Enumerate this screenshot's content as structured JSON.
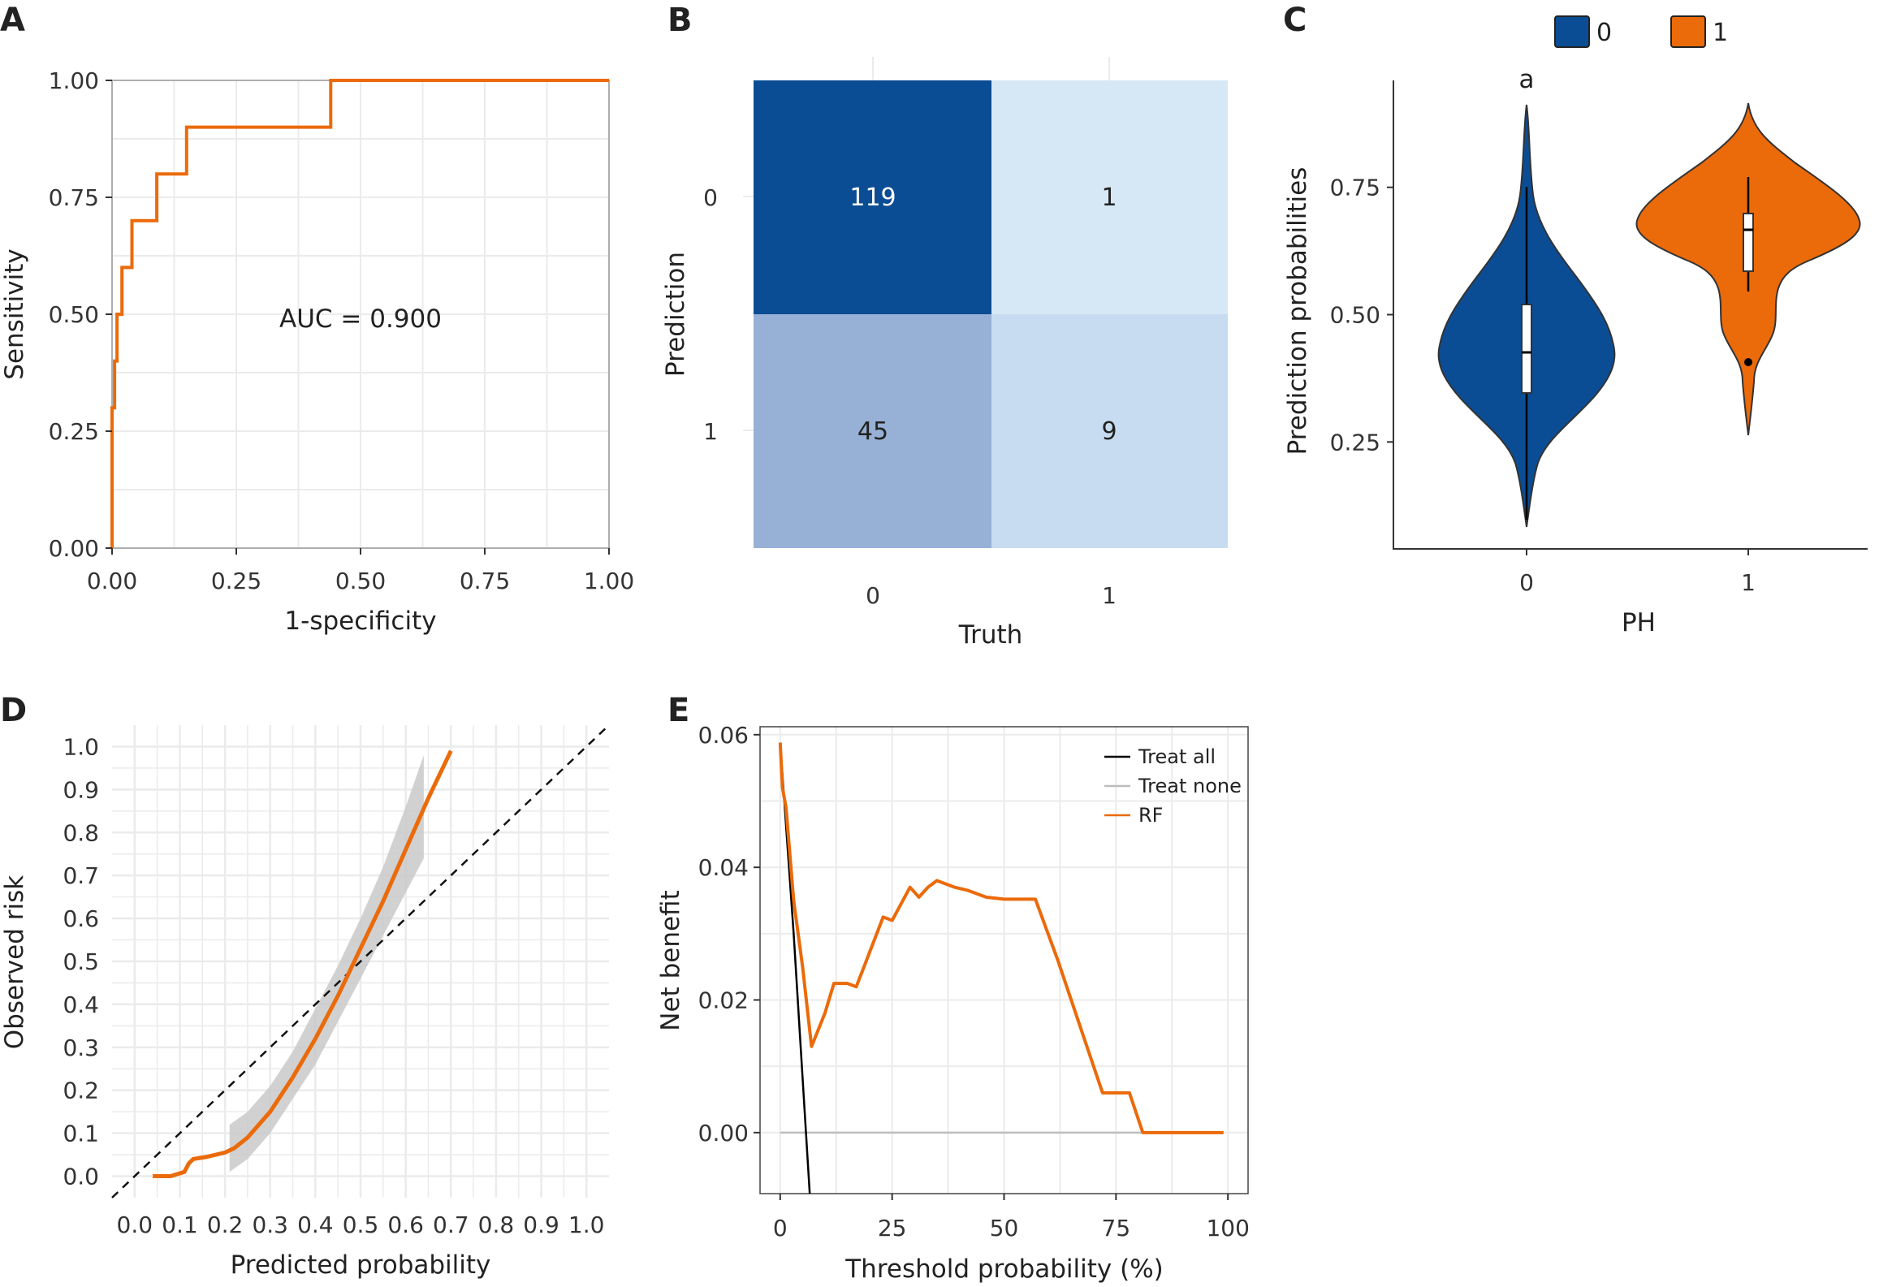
{
  "colors": {
    "orange": "#EB6A0A",
    "blue_dark": "#0B4D94",
    "blue_mid": "#97B0D5",
    "blue_light": "#C7DCF0",
    "blue_lighter": "#D6E8F6",
    "grid": "#EBEBEB",
    "band": "#C9C9C9",
    "treat_none": "#BDBDBD",
    "treat_all": "#000000"
  },
  "chart_data": [
    {
      "panel": "A",
      "type": "line",
      "xlabel": "1-specificity",
      "ylabel": "Sensitivity",
      "annotation": "AUC = 0.900",
      "xlim": [
        0,
        1
      ],
      "ylim": [
        0,
        1
      ],
      "xticks": [
        "0.00",
        "0.25",
        "0.50",
        "0.75",
        "1.00"
      ],
      "yticks": [
        "0.00",
        "0.25",
        "0.50",
        "0.75",
        "1.00"
      ],
      "grid": true,
      "series": [
        {
          "x": [
            0,
            0,
            0.005,
            0.005,
            0.01,
            0.01,
            0.02,
            0.02,
            0.04,
            0.04,
            0.09,
            0.09,
            0.15,
            0.15,
            0.25,
            0.25,
            0.44,
            0.44,
            1.0
          ],
          "y": [
            0,
            0.3,
            0.3,
            0.4,
            0.4,
            0.5,
            0.5,
            0.6,
            0.6,
            0.7,
            0.7,
            0.8,
            0.8,
            0.9,
            0.9,
            0.9,
            0.9,
            1.0,
            1.0
          ]
        }
      ]
    },
    {
      "panel": "B",
      "type": "heatmap",
      "xlabel": "Truth",
      "ylabel": "Prediction",
      "x_categories": [
        "0",
        "1"
      ],
      "y_categories": [
        "0",
        "1"
      ],
      "cells": [
        {
          "truth": "0",
          "prediction": "0",
          "value": 119,
          "text": "119"
        },
        {
          "truth": "1",
          "prediction": "0",
          "value": 1,
          "text": "1"
        },
        {
          "truth": "0",
          "prediction": "1",
          "value": 45,
          "text": "45"
        },
        {
          "truth": "1",
          "prediction": "1",
          "value": 9,
          "text": "9"
        }
      ]
    },
    {
      "panel": "C",
      "type": "violin",
      "xlabel": "PH",
      "ylabel": "Prediction probabilities",
      "categories": [
        "0",
        "1"
      ],
      "legend": [
        "0",
        "1"
      ],
      "legend_position": "top",
      "annotation": "a",
      "ylim": [
        0.04,
        0.96
      ],
      "yticks": [
        "0.25",
        "0.50",
        "0.75"
      ],
      "grid": false,
      "groups": [
        {
          "name": "0",
          "min": 0.06,
          "q1": 0.33,
          "median": 0.41,
          "q3": 0.5,
          "max": 0.91,
          "outliers": []
        },
        {
          "name": "1",
          "min": 0.26,
          "q1": 0.57,
          "median": 0.65,
          "q3": 0.68,
          "max": 0.92,
          "whisker_low": 0.53,
          "whisker_high": 0.76,
          "outliers": [
            0.39
          ]
        }
      ]
    },
    {
      "panel": "D",
      "type": "line",
      "xlabel": "Predicted probability",
      "ylabel": "Observed risk",
      "xlim": [
        -0.05,
        1.05
      ],
      "ylim": [
        -0.05,
        1.05
      ],
      "xticks": [
        "0.0",
        "0.1",
        "0.2",
        "0.3",
        "0.4",
        "0.5",
        "0.6",
        "0.7",
        "0.8",
        "0.9",
        "1.0"
      ],
      "yticks": [
        "0.0",
        "0.1",
        "0.2",
        "0.3",
        "0.4",
        "0.5",
        "0.6",
        "0.7",
        "0.8",
        "0.9",
        "1.0"
      ],
      "grid": true,
      "reference_line": {
        "x": [
          -0.05,
          1.05
        ],
        "y": [
          -0.05,
          1.05
        ],
        "style": "dashed"
      },
      "series": [
        {
          "x": [
            0.04,
            0.08,
            0.11,
            0.12,
            0.13,
            0.16,
            0.2,
            0.22,
            0.25,
            0.3,
            0.35,
            0.4,
            0.45,
            0.5,
            0.55,
            0.6,
            0.65,
            0.7
          ],
          "y": [
            0.0,
            0.0,
            0.01,
            0.03,
            0.04,
            0.045,
            0.055,
            0.065,
            0.09,
            0.15,
            0.23,
            0.32,
            0.42,
            0.53,
            0.64,
            0.76,
            0.88,
            0.99
          ]
        }
      ],
      "confidence_band": {
        "x": [
          0.21,
          0.25,
          0.3,
          0.35,
          0.4,
          0.45,
          0.5,
          0.55,
          0.6,
          0.64
        ],
        "lower": [
          0.01,
          0.04,
          0.1,
          0.18,
          0.26,
          0.36,
          0.46,
          0.56,
          0.66,
          0.74
        ],
        "upper": [
          0.12,
          0.15,
          0.21,
          0.29,
          0.39,
          0.49,
          0.6,
          0.72,
          0.86,
          0.98
        ]
      }
    },
    {
      "panel": "E",
      "type": "line",
      "xlabel": "Threshold probability (%)",
      "ylabel": "Net benefit",
      "xlim": [
        -4.5,
        104.5
      ],
      "ylim": [
        -0.0092,
        0.0612
      ],
      "xticks": [
        "0",
        "25",
        "50",
        "75",
        "100"
      ],
      "yticks": [
        "0.00",
        "0.02",
        "0.04",
        "0.06"
      ],
      "grid": true,
      "legend": [
        "Treat all",
        "Treat none",
        "RF"
      ],
      "legend_position": "top-right",
      "series": [
        {
          "name": "Treat all",
          "x": [
            0,
            3,
            6.6
          ],
          "y": [
            0.0588,
            0.03,
            -0.0092
          ]
        },
        {
          "name": "Treat none",
          "x": [
            0,
            99
          ],
          "y": [
            0,
            0
          ]
        },
        {
          "name": "RF",
          "x": [
            0,
            0.5,
            1.3,
            3,
            5,
            7,
            8.5,
            10,
            12,
            15,
            17,
            19,
            21,
            23,
            25,
            27,
            29,
            31,
            33,
            35,
            37,
            39,
            42,
            46,
            50,
            55,
            57,
            62,
            67,
            72,
            78,
            81,
            85,
            90,
            95,
            99
          ],
          "y": [
            0.0588,
            0.052,
            0.049,
            0.035,
            0.025,
            0.013,
            0.0155,
            0.018,
            0.0225,
            0.0225,
            0.022,
            0.0255,
            0.029,
            0.0325,
            0.032,
            0.0345,
            0.037,
            0.0355,
            0.037,
            0.038,
            0.0375,
            0.037,
            0.0365,
            0.0355,
            0.0352,
            0.0352,
            0.0352,
            0.026,
            0.016,
            0.006,
            0.006,
            0.0,
            0.0,
            0.0,
            0.0,
            0.0
          ]
        }
      ]
    }
  ]
}
